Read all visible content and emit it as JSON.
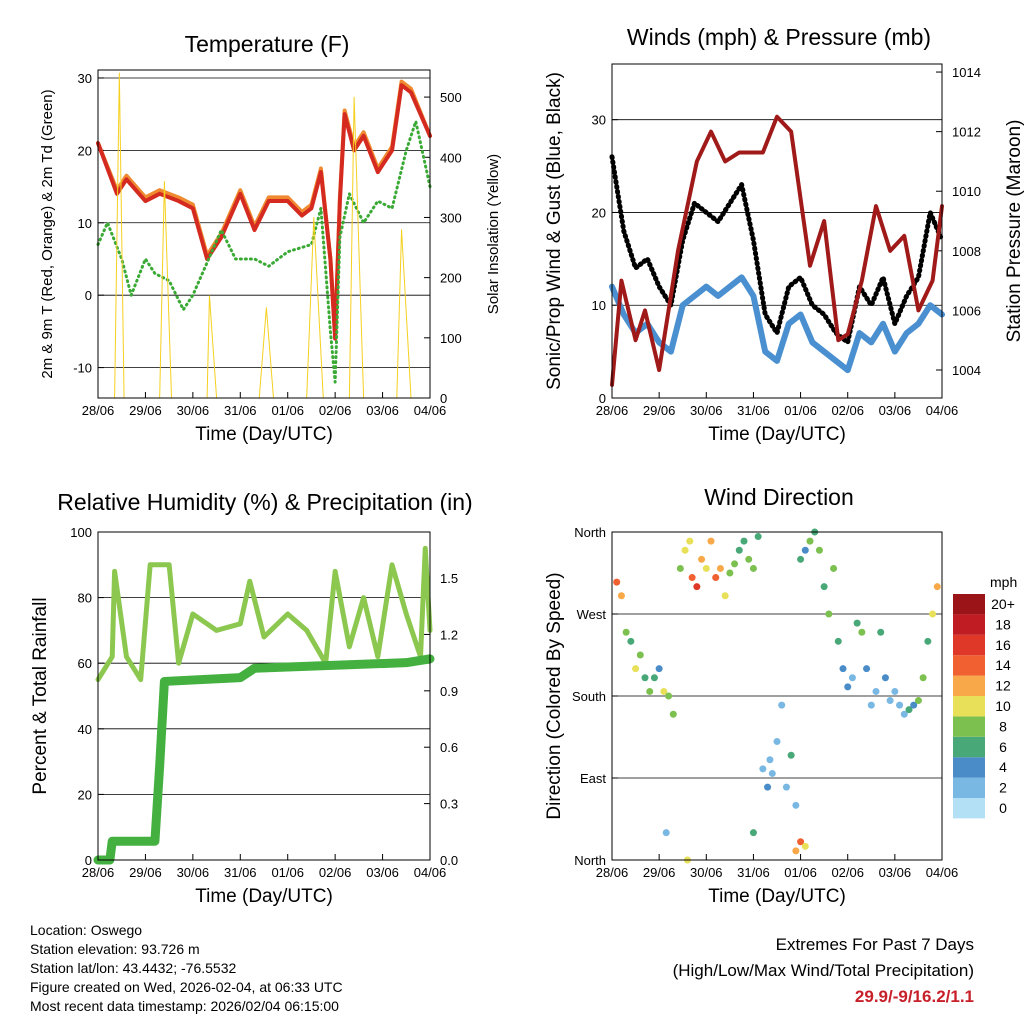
{
  "info": {
    "location": "Location: Oswego",
    "elevation": "Station elevation: 93.726 m",
    "latlon": "Station lat/lon: 43.4432; -76.5532",
    "created": "Figure created on Wed, 2026-02-04, at 06:33 UTC",
    "timestamp": "Most recent data timestamp: 2026/02/04 06:15:00"
  },
  "extremes": {
    "title": "Extremes For Past 7 Days",
    "subtitle": "(High/Low/Max Wind/Total Precipitation)",
    "values": "29.9/-9/16.2/1.1",
    "color": "#c8202a"
  },
  "chart_data": [
    {
      "type": "line",
      "title": "Temperature (F)",
      "xlabel": "Time (Day/UTC)",
      "ylabel": "2m & 9m T (Red, Orange) & 2m Td (Green)",
      "y2label": "Solar Insolation (Yellow)",
      "xticks": [
        "28/06",
        "29/06",
        "30/06",
        "31/06",
        "01/06",
        "02/06",
        "03/06",
        "04/06"
      ],
      "yticks": [
        -10,
        0,
        10,
        20,
        30
      ],
      "y2ticks": [
        0,
        100,
        200,
        300,
        400,
        500
      ],
      "ylim": [
        -14.2,
        31.1
      ],
      "y2lim": [
        0,
        545
      ],
      "xlim": [
        0,
        7
      ],
      "series": [
        {
          "name": "9m T",
          "color": "#f08a30",
          "axis": "left",
          "x": [
            0,
            0.4,
            0.6,
            1.0,
            1.3,
            1.7,
            2.0,
            2.3,
            2.6,
            3.0,
            3.3,
            3.6,
            4.0,
            4.3,
            4.5,
            4.7,
            4.9,
            5.0,
            5.1,
            5.2,
            5.4,
            5.6,
            5.9,
            6.2,
            6.4,
            6.6,
            7.0
          ],
          "y": [
            21,
            14.5,
            16.5,
            13.5,
            14.5,
            13.5,
            12.5,
            5.5,
            8.5,
            14.5,
            9.5,
            13.5,
            13.5,
            11.5,
            12.5,
            17.5,
            5,
            -5.5,
            13.5,
            25.5,
            20.5,
            22.5,
            17.5,
            20.5,
            29.5,
            28.5,
            22
          ]
        },
        {
          "name": "2m T",
          "color": "#d42a20",
          "axis": "left",
          "x": [
            0,
            0.4,
            0.6,
            1.0,
            1.3,
            1.7,
            2.0,
            2.3,
            2.6,
            3.0,
            3.3,
            3.6,
            4.0,
            4.3,
            4.5,
            4.7,
            4.9,
            5.0,
            5.1,
            5.2,
            5.4,
            5.6,
            5.9,
            6.2,
            6.4,
            6.6,
            7.0
          ],
          "y": [
            21,
            14,
            16,
            13,
            14,
            13,
            12,
            5,
            8,
            14,
            9,
            13,
            13,
            11,
            12,
            17,
            5,
            -6,
            13,
            25,
            20,
            22,
            17,
            20,
            29,
            28,
            22
          ]
        },
        {
          "name": "2m Td",
          "color": "#3aaa35",
          "axis": "left",
          "x": [
            0,
            0.2,
            0.5,
            0.7,
            1.0,
            1.2,
            1.5,
            1.8,
            2.0,
            2.4,
            2.6,
            2.9,
            3.3,
            3.6,
            4.0,
            4.5,
            4.7,
            4.9,
            5.0,
            5.1,
            5.3,
            5.6,
            5.9,
            6.2,
            6.5,
            6.7,
            7.0
          ],
          "y": [
            7,
            10,
            5,
            0,
            5,
            3,
            2,
            -2,
            0,
            6,
            9,
            5,
            5,
            4,
            6,
            7,
            12,
            -5,
            -12,
            8,
            14,
            10,
            13,
            12,
            20,
            24,
            15
          ]
        },
        {
          "name": "Solar Insolation",
          "color": "#f5d020",
          "axis": "right",
          "x": [
            0,
            0.35,
            0.45,
            0.55,
            0.9,
            1.3,
            1.4,
            1.55,
            1.9,
            2.3,
            2.35,
            2.5,
            2.9,
            3.4,
            3.55,
            3.7,
            4.0,
            4.4,
            4.55,
            4.75,
            5.0,
            5.3,
            5.4,
            5.6,
            5.9,
            6.3,
            6.4,
            6.6,
            7.0
          ],
          "y": [
            0,
            0,
            540,
            0,
            0,
            0,
            360,
            0,
            0,
            0,
            170,
            0,
            0,
            0,
            150,
            0,
            0,
            0,
            300,
            0,
            0,
            0,
            500,
            0,
            0,
            0,
            280,
            0,
            0
          ]
        }
      ]
    },
    {
      "type": "line",
      "title": "Winds (mph) & Pressure (mb)",
      "xlabel": "Time (Day/UTC)",
      "ylabel": "Sonic/Prop Wind & Gust (Blue, Black)",
      "y2label": "Station Pressure (Maroon)",
      "xticks": [
        "28/06",
        "29/06",
        "30/06",
        "31/06",
        "01/06",
        "02/06",
        "03/06",
        "04/06"
      ],
      "yticks": [
        0,
        10,
        20,
        30
      ],
      "y2ticks": [
        1004,
        1006,
        1008,
        1010,
        1012,
        1014
      ],
      "ylim": [
        0,
        36
      ],
      "y2lim": [
        1003.06,
        1014.27
      ],
      "xlim": [
        0,
        7
      ],
      "series": [
        {
          "name": "Wind",
          "color": "#4a90d0",
          "axis": "left",
          "x": [
            0,
            0.25,
            0.5,
            0.75,
            1.0,
            1.25,
            1.5,
            1.75,
            2.0,
            2.25,
            2.5,
            2.75,
            3.0,
            3.25,
            3.5,
            3.75,
            4.0,
            4.25,
            4.5,
            4.75,
            5.0,
            5.25,
            5.5,
            5.75,
            6.0,
            6.25,
            6.5,
            6.75,
            7.0
          ],
          "y": [
            12,
            9,
            7,
            8,
            6,
            5,
            10,
            11,
            12,
            11,
            12,
            13,
            11,
            5,
            4,
            8,
            9,
            6,
            5,
            4,
            3,
            7,
            6,
            8,
            5,
            7,
            8,
            10,
            9
          ]
        },
        {
          "name": "Gust",
          "color": "#000000",
          "axis": "left",
          "x": [
            0,
            0.25,
            0.5,
            0.75,
            1.0,
            1.25,
            1.5,
            1.75,
            2.0,
            2.25,
            2.5,
            2.75,
            3.0,
            3.25,
            3.5,
            3.75,
            4.0,
            4.25,
            4.5,
            4.75,
            5.0,
            5.25,
            5.5,
            5.75,
            6.0,
            6.25,
            6.5,
            6.75,
            7.0
          ],
          "y": [
            26,
            18,
            14,
            15,
            12,
            10,
            17,
            21,
            20,
            19,
            21,
            23,
            17,
            9,
            7,
            12,
            13,
            10,
            9,
            7,
            6,
            12,
            10,
            13,
            8,
            11,
            13,
            20,
            17
          ]
        },
        {
          "name": "Pressure",
          "color": "#a01a1a",
          "axis": "right",
          "x": [
            0,
            0.2,
            0.5,
            0.7,
            1.0,
            1.4,
            1.8,
            2.1,
            2.4,
            2.7,
            3.2,
            3.5,
            3.8,
            4.2,
            4.5,
            4.8,
            5.0,
            5.3,
            5.6,
            5.9,
            6.2,
            6.5,
            6.8,
            7.0
          ],
          "y": [
            1003.5,
            1007,
            1005,
            1006,
            1004,
            1008,
            1011,
            1012,
            1011,
            1011.3,
            1011.3,
            1012.5,
            1012,
            1007.5,
            1009,
            1005,
            1005.2,
            1007,
            1009.5,
            1008,
            1008.5,
            1006,
            1007,
            1009.5
          ]
        }
      ]
    },
    {
      "type": "line",
      "title": "Relative Humidity (%) & Precipitation (in)",
      "xlabel": "Time (Day/UTC)",
      "ylabel": "Percent & Total Rainfall",
      "xticks": [
        "28/06",
        "29/06",
        "30/06",
        "31/06",
        "01/06",
        "02/06",
        "03/06",
        "04/06"
      ],
      "yticks": [
        0,
        20,
        40,
        60,
        80,
        100
      ],
      "y2ticks": [
        "0.0",
        "0.3",
        "0.6",
        "0.9",
        "1.2",
        "1.5"
      ],
      "ylim": [
        0,
        100
      ],
      "y2lim": [
        0,
        1.745
      ],
      "xlim": [
        0,
        7
      ],
      "series": [
        {
          "name": "Relative Humidity",
          "color": "#8cc850",
          "axis": "left",
          "x": [
            0,
            0.3,
            0.35,
            0.6,
            0.9,
            1.1,
            1.5,
            1.7,
            2.0,
            2.5,
            3.0,
            3.2,
            3.5,
            4.0,
            4.4,
            4.8,
            5.0,
            5.3,
            5.6,
            5.9,
            6.2,
            6.5,
            6.8,
            6.9,
            7.0
          ],
          "y": [
            55,
            62,
            88,
            62,
            55,
            90,
            90,
            60,
            75,
            70,
            72,
            85,
            68,
            75,
            70,
            60,
            88,
            65,
            80,
            62,
            90,
            75,
            62,
            95,
            70
          ]
        },
        {
          "name": "Total Precipitation",
          "color": "#44b040",
          "axis": "right",
          "x": [
            0,
            0.25,
            0.3,
            1.2,
            1.3,
            1.4,
            3.0,
            3.3,
            6.5,
            7.0
          ],
          "y": [
            0,
            0,
            0.1,
            0.1,
            0.5,
            0.95,
            0.97,
            1.02,
            1.05,
            1.07
          ]
        }
      ]
    },
    {
      "type": "scatter",
      "title": "Wind Direction",
      "xlabel": "Time (Day/UTC)",
      "ylabel": "Direction (Colored By Speed)",
      "xticks": [
        "28/06",
        "29/06",
        "30/06",
        "31/06",
        "01/06",
        "02/06",
        "03/06",
        "04/06"
      ],
      "yticks": [
        "North",
        "East",
        "South",
        "West",
        "North"
      ],
      "ylim": [
        0,
        360
      ],
      "xlim": [
        0,
        7
      ],
      "legend": {
        "title": "mph",
        "labels": [
          "0",
          "2",
          "4",
          "6",
          "8",
          "10",
          "12",
          "14",
          "16",
          "18",
          "20+"
        ],
        "colors": [
          "#b4e0f6",
          "#7ab8e4",
          "#4a8cc8",
          "#48a878",
          "#7cc050",
          "#e8e058",
          "#f8a848",
          "#f06030",
          "#e03828",
          "#c01c24",
          "#9a1418"
        ],
        "placement": "right"
      },
      "points": {
        "x": [
          0.1,
          0.2,
          0.3,
          0.4,
          0.5,
          0.6,
          0.7,
          0.8,
          0.9,
          1.0,
          1.1,
          1.2,
          1.3,
          1.45,
          1.55,
          1.65,
          1.7,
          1.8,
          1.9,
          2.0,
          2.1,
          2.2,
          2.3,
          2.4,
          2.5,
          2.6,
          2.7,
          2.8,
          2.9,
          3.0,
          3.1,
          3.2,
          3.3,
          3.35,
          3.4,
          3.5,
          3.6,
          3.7,
          3.8,
          3.9,
          4.0,
          4.1,
          4.2,
          4.3,
          4.4,
          4.5,
          4.6,
          4.7,
          4.8,
          4.9,
          5.0,
          5.1,
          5.2,
          5.3,
          5.4,
          5.5,
          5.6,
          5.7,
          5.8,
          5.9,
          6.0,
          6.1,
          6.2,
          6.3,
          6.4,
          6.5,
          6.6,
          6.7,
          6.8,
          6.9,
          1.15,
          1.6,
          3.0,
          3.9,
          4.0,
          4.1
        ],
        "y": [
          305,
          290,
          250,
          240,
          210,
          225,
          200,
          185,
          200,
          210,
          185,
          180,
          160,
          320,
          340,
          350,
          310,
          300,
          330,
          320,
          350,
          310,
          320,
          290,
          315,
          325,
          340,
          350,
          330,
          320,
          355,
          100,
          80,
          110,
          95,
          130,
          170,
          80,
          115,
          60,
          330,
          340,
          350,
          360,
          340,
          300,
          270,
          320,
          240,
          210,
          190,
          200,
          260,
          250,
          210,
          170,
          185,
          250,
          200,
          175,
          185,
          170,
          160,
          165,
          170,
          175,
          200,
          240,
          270,
          300,
          30,
          0,
          30,
          10,
          20,
          15
        ],
        "speed": [
          14,
          13,
          9,
          7,
          10,
          8,
          7,
          9,
          6,
          5,
          10,
          8,
          8,
          9,
          11,
          10,
          14,
          16,
          12,
          10,
          13,
          15,
          12,
          11,
          9,
          8,
          7,
          6,
          8,
          9,
          7,
          3,
          4,
          3,
          3,
          2,
          2,
          3,
          6,
          3,
          6,
          5,
          8,
          7,
          9,
          7,
          8,
          9,
          6,
          5,
          4,
          3,
          7,
          8,
          4,
          3,
          3,
          6,
          4,
          2,
          2,
          2,
          3,
          6,
          5,
          8,
          9,
          7,
          11,
          12,
          3,
          10,
          6,
          12,
          14,
          11
        ]
      }
    }
  ]
}
